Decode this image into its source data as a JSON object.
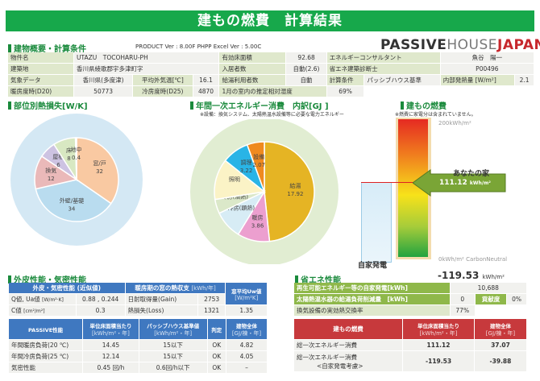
{
  "title": "建もの燃費　計算結果",
  "overview": {
    "heading": "建物概要・計算条件",
    "version": "PRODUCT Ver : 8.00F  PHPP Excel Ver : 5.00C",
    "logo": {
      "a": "PASSIVE",
      "b": "HOUSE",
      "c": "JAPAN"
    },
    "rows": [
      [
        "物件名",
        "UTAZU　TOCOHARU-PH",
        "有効床面積",
        "92.68",
        "エネルギーコンサルタント",
        "魚谷　陽一"
      ],
      [
        "建築地",
        "香川県綾歌郡宇多津町字",
        "入居者数",
        "自動(2.6)",
        "省エネ建築診断士",
        "P00496"
      ]
    ],
    "climate_label": "気象データ",
    "climate": "香川県(多度津)",
    "avg_temp_label": "平均外気温[℃]",
    "avg_temp": "16.1",
    "hw_users_label": "給湯利用者数",
    "hw_users": "自動",
    "calc_label": "計算条件",
    "calc": "パッシブハウス基準",
    "internal_label": "内部発熱量 [W/m²]",
    "internal": "2.1",
    "hdd_label": "暖房度時(D20)",
    "hdd": "50773",
    "cdd_label": "冷房度時(D25)",
    "cdd": "4870",
    "rh_label": "1月の室内の推定相対湿度",
    "rh": "69%"
  },
  "heatloss": {
    "heading": "部位別熱損失[W/K]",
    "slices": [
      {
        "label": "窓/戸",
        "value": 32,
        "color": "#f9c9a2"
      },
      {
        "label": "外壁/基礎",
        "value": 34,
        "color": "#b9dcef"
      },
      {
        "label": "換気",
        "value": 12,
        "color": "#eab9b9"
      },
      {
        "label": "屋根",
        "value": 6,
        "color": "#cdc3e2"
      },
      {
        "label": "床",
        "value": 8,
        "color": "#d8e8c2"
      },
      {
        "label": "地中",
        "value": 0.4,
        "color": "#bdb5d8"
      }
    ]
  },
  "energy": {
    "heading": "年間一次エネルギー消費　内訳[GJ ]",
    "note": "※設備：換気システム、太陽熱温水設備等に必要な電力エネルギー",
    "slices": [
      {
        "label": "給湯",
        "value": 17.92,
        "text": "17.92",
        "color": "#e5b424"
      },
      {
        "label": "暖房",
        "value": 3.86,
        "text": "3.86",
        "color": "#ec9fcf"
      },
      {
        "label": "冷房(顕熱)",
        "value": 3.4,
        "text": "",
        "color": "#d7ecf5"
      },
      {
        "label": "冷房(潜熱)",
        "value": 1.7,
        "text": "",
        "color": "#dbe8c9"
      },
      {
        "label": "照明",
        "value": 4.9,
        "text": "",
        "color": "#fbf3c6"
      },
      {
        "label": "調理",
        "value": 3.22,
        "text": "3.22",
        "color": "#29b4e6"
      },
      {
        "label": "設備",
        "value": 2.07,
        "text": "2.07",
        "color": "#ef8a1f"
      }
    ]
  },
  "fuel": {
    "heading": "建もの燃費",
    "note": "※燃費に家電分は含まれていません。",
    "top": "200kWh/m²",
    "bottom": "0kWh/m² CarbonNeutral",
    "your_house": "あなたの家",
    "value": "111.12",
    "unit": "kWh/m²",
    "value_fraction": 0.5556,
    "self_gen": "自家発電"
  },
  "envelope": {
    "heading": "外皮性能・気密性能",
    "h1": "外皮・気密性能 (近似値)",
    "h2": "暖房期の窓の熱収支",
    "h2u": "[kWh/年]",
    "h3": "窓平均Uw値",
    "h3u": "[W/m²K]",
    "q_label": "Q値, Ua値",
    "q_unit": "[W/m²·K]",
    "q": "0.88 , 0.244",
    "gain_label": "日射取得量(Gain)",
    "gain": "2753",
    "uw": "1.35",
    "c_label": "C値",
    "c_unit": "[cm²/m²]",
    "c": "0.3",
    "loss_label": "熱損失(Loss)",
    "loss": "1321"
  },
  "passive": {
    "h": [
      "PASSIVE性能",
      "単位床面積当たり",
      "パッシブハウス基準値",
      "判定",
      "建物全体"
    ],
    "hu": [
      "",
      "[kWh/m²・年]",
      "[kWh/m²・年]",
      "",
      "[GJ/棟・年]"
    ],
    "rows": [
      [
        "年間暖房負荷(20 ℃)",
        "14.45",
        "15以下",
        "OK",
        "4.82"
      ],
      [
        "年間冷房負荷(25 ℃)",
        "12.14",
        "15以下",
        "OK",
        "4.05"
      ],
      [
        "気密性能",
        "0.45 回/h",
        "0.6回/h以下",
        "OK",
        "–"
      ]
    ]
  },
  "saving": {
    "heading": "省エネ性能",
    "total": "-119.53",
    "total_unit": "kWh/m²",
    "r1": "再生可能エネルギー等の自家発電[kWh]",
    "r1v": "10,688",
    "r2": "太陽熱温水器の給湯負荷削減量　[kWh]",
    "r2v": "0",
    "contrib": "貢献度",
    "contrib_v": "0%",
    "r3": "換気設備の実効熱交換率",
    "r3v": "77%"
  },
  "fuel_table": {
    "h": [
      "建もの燃費",
      "単位床面積当たり",
      "建物全体"
    ],
    "hu": [
      "",
      "[kWh/m²・年]",
      "[GJ/棟・年]"
    ],
    "r1": [
      "総一次エネルギー消費",
      "111.12",
      "37.07"
    ],
    "r2": [
      "総一次エネルギー消費",
      "<自家発電考慮>",
      "-119.53",
      "-39.88"
    ]
  }
}
